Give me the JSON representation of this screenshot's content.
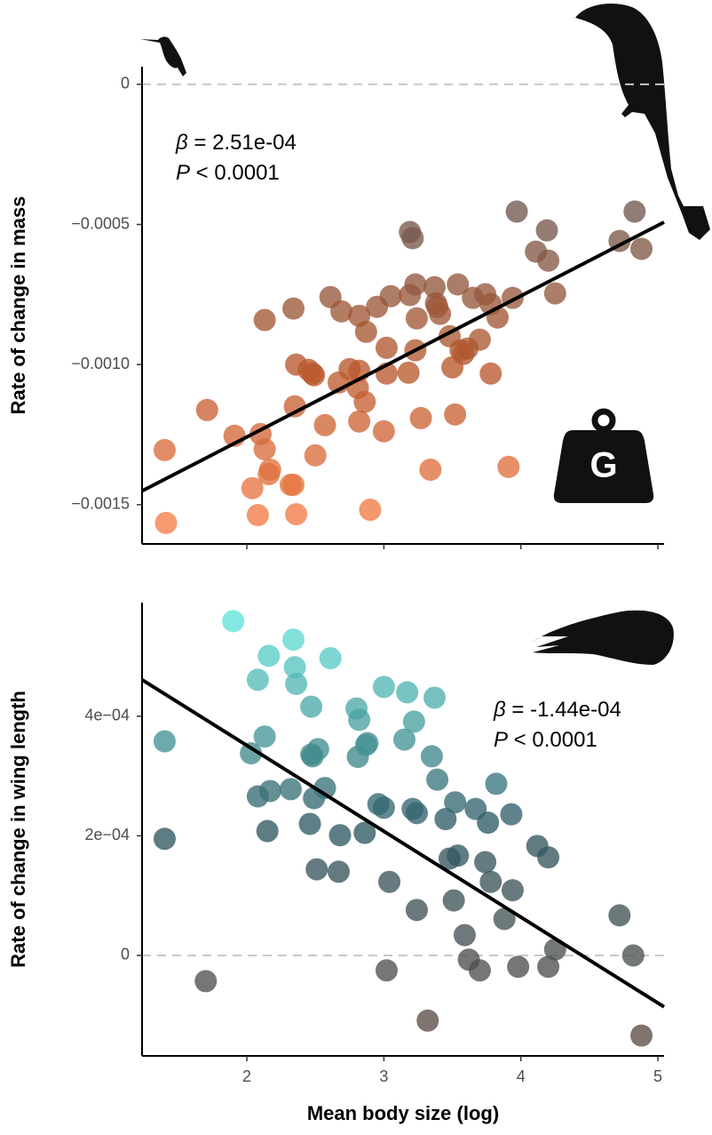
{
  "chart_data": [
    {
      "type": "scatter",
      "y_label": "Rate of change in mass",
      "annotation": [
        "β = 2.51e-04",
        "P < 0.0001"
      ],
      "icon_label": "G",
      "xlim": [
        1.235,
        5.045
      ],
      "xticks": [
        2,
        3,
        4,
        5
      ],
      "xtick_labels": false,
      "ylim": [
        -0.00164,
        6.3e-05
      ],
      "yticks": [
        {
          "value": -0.0015,
          "label": "−0.0015"
        },
        {
          "value": -0.001,
          "label": "−0.0010"
        },
        {
          "value": -0.0005,
          "label": "−0.0005"
        },
        0
      ],
      "zero_line": true,
      "point_colors": [
        "#f57d48",
        "#b8582c",
        "#6f5850"
      ],
      "line_color": "#000000",
      "x": [
        1.4,
        1.41,
        1.71,
        1.91,
        2.04,
        2.08,
        2.1,
        2.13,
        2.16,
        2.17,
        2.13,
        2.32,
        2.34,
        2.36,
        2.34,
        2.36,
        2.35,
        2.45,
        2.48,
        2.49,
        2.5,
        2.57,
        2.61,
        2.67,
        2.69,
        2.75,
        2.82,
        2.82,
        2.81,
        2.82,
        2.86,
        2.87,
        2.9,
        2.95,
        3.0,
        3.02,
        3.02,
        3.05,
        3.18,
        3.19,
        3.21,
        3.19,
        3.23,
        3.24,
        3.23,
        3.27,
        3.34,
        3.37,
        3.38,
        3.39,
        3.41,
        3.48,
        3.5,
        3.52,
        3.54,
        3.56,
        3.58,
        3.61,
        3.65,
        3.7,
        3.74,
        3.78,
        3.78,
        3.83,
        3.91,
        3.94,
        3.97,
        4.11,
        4.19,
        4.2,
        4.25,
        4.72,
        4.83,
        4.88
      ],
      "values": [
        -0.001305,
        -0.001565,
        -0.001162,
        -0.001254,
        -0.001441,
        -0.001537,
        -0.001248,
        -0.001302,
        -0.001391,
        -0.001375,
        -0.000841,
        -0.001429,
        -0.001429,
        -0.001534,
        -0.0008,
        -0.001,
        -0.001149,
        -0.001019,
        -0.001032,
        -0.001038,
        -0.001324,
        -0.001216,
        -0.000759,
        -0.001064,
        -0.00081,
        -0.001016,
        -0.000826,
        -0.001022,
        -0.001083,
        -0.001203,
        -0.001133,
        -0.000883,
        -0.001518,
        -0.000794,
        -0.001238,
        -0.001032,
        -0.00094,
        -0.000756,
        -0.001029,
        -0.000752,
        -0.000549,
        -0.000527,
        -0.000949,
        -0.000835,
        -0.000714,
        -0.001191,
        -0.001375,
        -0.000724,
        -0.000781,
        -0.000794,
        -0.000819,
        -0.000899,
        -0.00101,
        -0.001178,
        -0.000714,
        -0.000949,
        -0.000962,
        -0.000943,
        -0.000762,
        -0.000911,
        -0.000749,
        -0.001032,
        -0.000784,
        -0.000832,
        -0.001365,
        -0.000762,
        -0.000454,
        -0.000597,
        -0.000521,
        -0.000629,
        -0.000746,
        -0.000559,
        -0.000454,
        -0.000587
      ],
      "fit": {
        "x": [
          1.235,
          5.045
        ],
        "values": [
          -0.001451,
          -0.000492
        ]
      }
    },
    {
      "type": "scatter",
      "y_label": "Rate of change in wing length",
      "x_label": "Mean body size (log)",
      "annotation": [
        "β = -1.44e-04",
        "P < 0.0001"
      ],
      "xlim": [
        1.235,
        5.045
      ],
      "xticks": [
        2,
        3,
        4,
        5
      ],
      "xtick_labels": true,
      "ylim": [
        -0.000168,
        0.00059
      ],
      "yticks": [
        0,
        {
          "value": 0.0002,
          "label": "2e−04"
        },
        {
          "value": 0.0004,
          "label": "4e−04"
        }
      ],
      "zero_line": true,
      "point_colors": [
        "#5e4c45",
        "#2f5863",
        "#62e3da"
      ],
      "line_color": "#000000",
      "x": [
        1.9,
        1.4,
        1.4,
        1.7,
        2.08,
        2.16,
        2.03,
        2.08,
        2.13,
        2.17,
        2.15,
        2.34,
        2.35,
        2.36,
        2.32,
        2.47,
        2.47,
        2.48,
        2.49,
        2.46,
        2.51,
        2.52,
        2.57,
        2.61,
        2.67,
        2.68,
        2.8,
        2.82,
        2.81,
        2.87,
        2.88,
        2.86,
        2.96,
        3.0,
        3.0,
        3.02,
        3.04,
        3.15,
        3.17,
        3.22,
        3.24,
        3.21,
        3.24,
        3.32,
        3.37,
        3.35,
        3.39,
        3.45,
        3.52,
        3.48,
        3.54,
        3.51,
        3.59,
        3.62,
        3.67,
        3.7,
        3.74,
        3.76,
        3.78,
        3.82,
        3.88,
        3.93,
        3.94,
        3.98,
        4.12,
        4.2,
        4.2,
        4.25,
        4.72,
        4.82,
        4.88
      ],
      "values": [
        0.000559,
        0.000358,
        0.000195,
        -4.3e-05,
        0.000461,
        0.000501,
        0.000338,
        0.000266,
        0.000366,
        0.000275,
        0.000208,
        0.000528,
        0.000482,
        0.000454,
        0.000278,
        0.000416,
        0.000336,
        0.000333,
        0.000263,
        0.00022,
        0.000144,
        0.000345,
        0.00028,
        0.000497,
        0.00014,
        0.000201,
        0.000413,
        0.000394,
        0.000332,
        0.000352,
        0.000355,
        0.000205,
        0.000253,
        0.000449,
        0.000247,
        -2.5e-05,
        0.000123,
        0.000361,
        0.00044,
        0.000391,
        0.000238,
        0.000245,
        7.6e-05,
        -0.000109,
        0.000431,
        0.000333,
        0.000294,
        0.000228,
        0.000256,
        0.000162,
        0.000167,
        9.2e-05,
        3.4e-05,
        -7e-06,
        0.000245,
        -2.5e-05,
        0.000156,
        0.000222,
        0.000123,
        0.000287,
        6.1e-05,
        0.000236,
        0.000109,
        -1.9e-05,
        0.000183,
        -1.9e-05,
        0.000164,
        1e-05,
        6.7e-05,
        0,
        -0.000134
      ],
      "fit": {
        "x": [
          1.235,
          5.045
        ],
        "values": [
          0.000461,
          -8.6e-05
        ]
      }
    }
  ]
}
